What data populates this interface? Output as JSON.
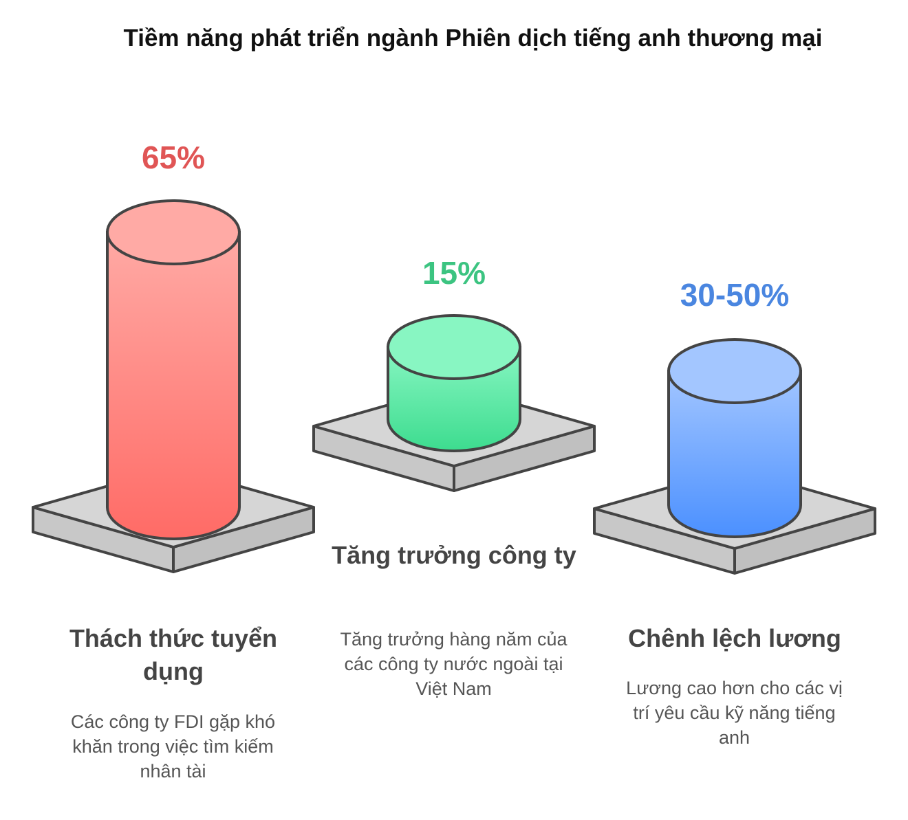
{
  "title": "Tiềm năng phát triển ngành Phiên dịch tiếng anh thương mại",
  "items": [
    {
      "value": "65%",
      "heading": "Thách thức tuyển dụng",
      "description": "Các công ty FDI gặp khó khăn trong việc tìm kiếm nhân tài",
      "color": "#e05555",
      "fill_top": "#ffaaa5",
      "fill_bottom": "#ff6b66"
    },
    {
      "value": "15%",
      "heading": "Tăng trưởng công ty",
      "description": "Tăng trưởng hàng năm của các công ty nước ngoài tại Việt Nam",
      "color": "#3cc481",
      "fill_top": "#88f6c2",
      "fill_bottom": "#3ddc8f"
    },
    {
      "value": "30-50%",
      "heading": "Chênh lệch lương",
      "description": "Lương cao hơn cho các vị trí yêu cầu kỹ năng tiếng anh",
      "color": "#4a86e0",
      "fill_top": "#a3c6ff",
      "fill_bottom": "#4b90ff"
    }
  ]
}
